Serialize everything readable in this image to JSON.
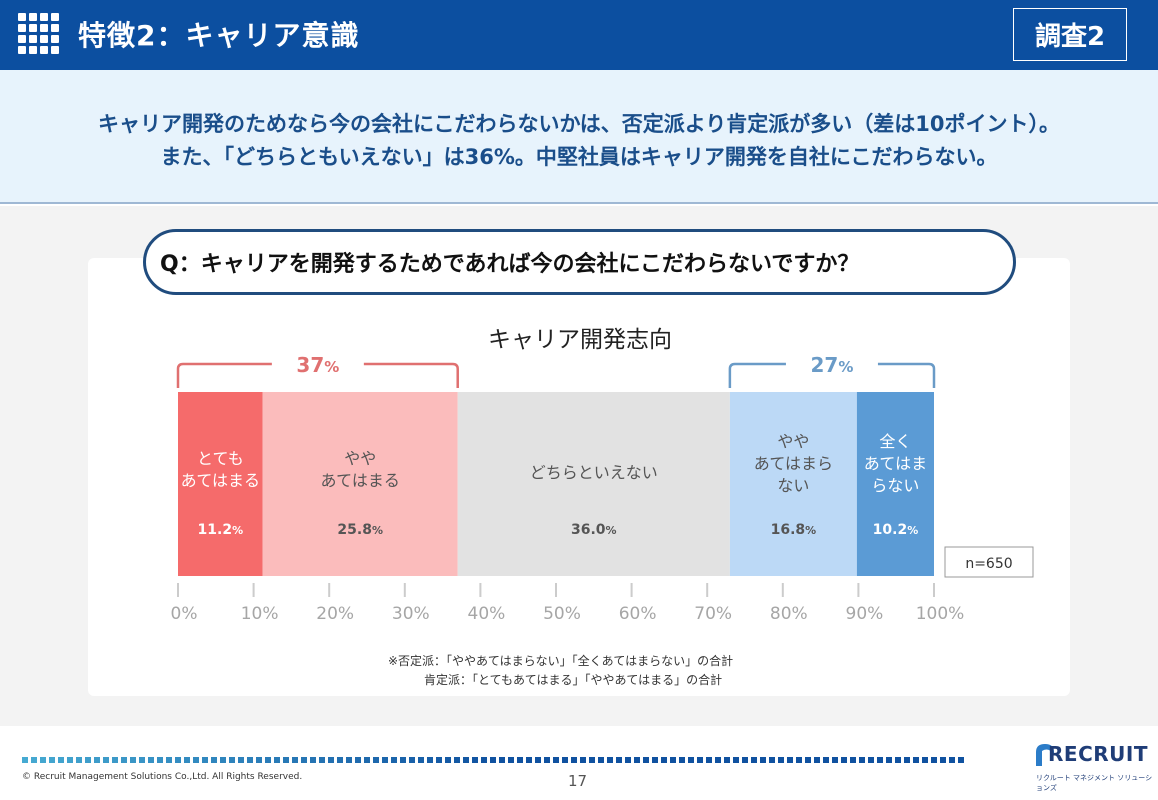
{
  "header": {
    "title": "特徴2：キャリア意識",
    "badge": "調査2",
    "icon": "grid-menu-icon"
  },
  "summary": {
    "line1": "キャリア開発のためなら今の会社にこだわらないかは、否定派より肯定派が多い（差は10ポイント）。",
    "line2": "また、「どちらともいえない」は36%。中堅社員はキャリア開発を自社にこだわらない。"
  },
  "question": "Q：キャリアを開発するためであれば今の会社にこだわらないですか？",
  "chart_data": {
    "type": "bar",
    "orientation": "horizontal-stacked-100",
    "title": "キャリア開発志向",
    "categories": [
      "とても\nあてはまる",
      "やや\nあてはまる",
      "どちらといえない",
      "やや\nあてはまら\nない",
      "全く\nあてはま\nらない"
    ],
    "values": [
      11.2,
      25.8,
      36.0,
      16.8,
      10.2
    ],
    "value_labels": [
      "11.2",
      "25.8",
      "36.0",
      "16.8",
      "10.2"
    ],
    "value_suffix": "%",
    "colors": [
      "#f56b6b",
      "#fbbcbc",
      "#e2e2e2",
      "#bcd9f6",
      "#5b9bd5"
    ],
    "label_colors": [
      "#ffffff",
      "#555555",
      "#555555",
      "#555555",
      "#ffffff"
    ],
    "xlim": [
      0,
      100
    ],
    "xticks": [
      "0%",
      "10%",
      "20%",
      "30%",
      "40%",
      "50%",
      "60%",
      "70%",
      "80%",
      "90%",
      "100%"
    ],
    "brackets": [
      {
        "label": "37",
        "suffix": "%",
        "from": 0,
        "to": 37,
        "color": "#e07070"
      },
      {
        "label": "27",
        "suffix": "%",
        "from": 73,
        "to": 100,
        "color": "#6a9bc7"
      }
    ],
    "sample_size": "n=650",
    "grid": false,
    "legend": "none"
  },
  "notes": {
    "line1": "※否定派：「ややあてはまらない」「全くあてはまらない」の合計",
    "line2": "肯定派：「とてもあてはまる」「ややあてはまる」の合計"
  },
  "footer": {
    "copyright": "© Recruit Management Solutions Co.,Ltd. All Rights Reserved.",
    "page": "17",
    "logo": "RECRUIT",
    "logo_sub": "リクルート マネジメント ソリューションズ"
  }
}
